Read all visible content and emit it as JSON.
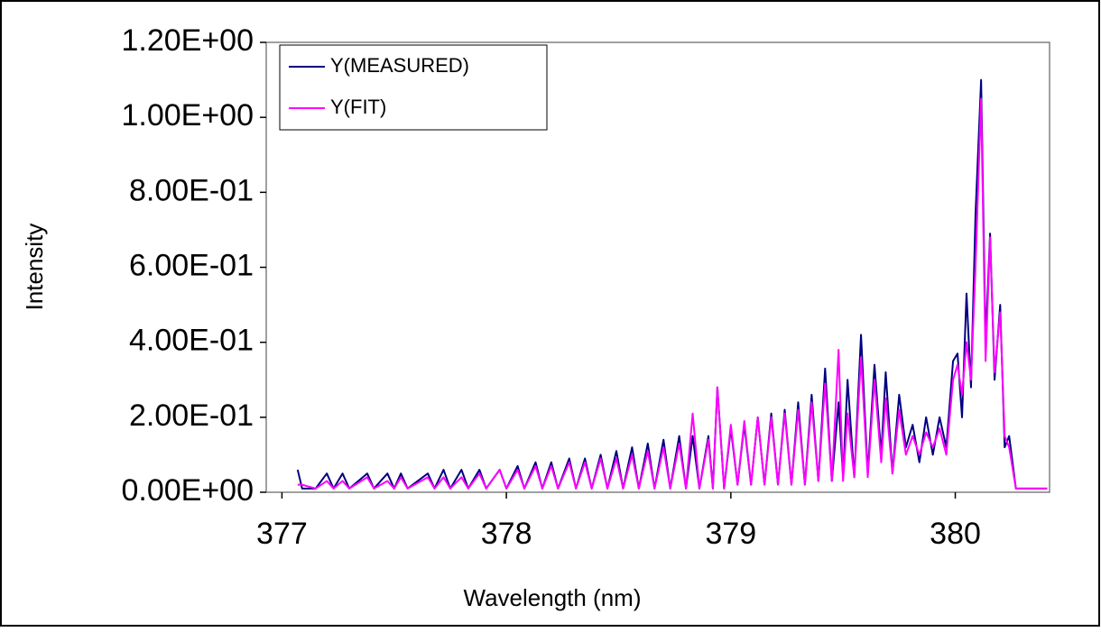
{
  "chart_data": {
    "type": "line",
    "x_label": "Wavelength (nm)",
    "y_label": "Intensity",
    "xlim": [
      376.93,
      380.42
    ],
    "xticks": [
      377,
      378,
      379,
      380
    ],
    "ylim": [
      0,
      1.2
    ],
    "yticks": [
      {
        "value": 0,
        "label": "0.00E+00"
      },
      {
        "value": 0.2,
        "label": "2.00E-01"
      },
      {
        "value": 0.4,
        "label": "4.00E-01"
      },
      {
        "value": 0.6,
        "label": "6.00E-01"
      },
      {
        "value": 0.8,
        "label": "8.00E-01"
      },
      {
        "value": 1.0,
        "label": "1.00E+00"
      },
      {
        "value": 1.2,
        "label": "1.20E+00"
      }
    ],
    "legend": "top-left",
    "x": [
      377.07,
      377.09,
      377.15,
      377.2,
      377.23,
      377.27,
      377.3,
      377.38,
      377.41,
      377.47,
      377.5,
      377.53,
      377.56,
      377.65,
      377.68,
      377.72,
      377.75,
      377.8,
      377.83,
      377.88,
      377.91,
      377.97,
      378.0,
      378.05,
      378.08,
      378.13,
      378.16,
      378.2,
      378.23,
      378.28,
      378.31,
      378.35,
      378.38,
      378.42,
      378.45,
      378.49,
      378.52,
      378.56,
      378.59,
      378.63,
      378.66,
      378.7,
      378.73,
      378.77,
      378.8,
      378.83,
      378.86,
      378.9,
      378.92,
      378.94,
      378.97,
      379.0,
      379.03,
      379.06,
      379.09,
      379.12,
      379.15,
      379.18,
      379.21,
      379.24,
      379.27,
      379.3,
      379.33,
      379.36,
      379.39,
      379.42,
      379.45,
      379.48,
      379.5,
      379.52,
      379.55,
      379.58,
      379.61,
      379.64,
      379.67,
      379.69,
      379.72,
      379.75,
      379.78,
      379.81,
      379.84,
      379.87,
      379.9,
      379.93,
      379.96,
      379.99,
      380.01,
      380.03,
      380.05,
      380.07,
      380.09,
      380.115,
      380.135,
      380.155,
      380.175,
      380.2,
      380.22,
      380.24,
      380.27,
      380.41
    ],
    "series": [
      {
        "name": "Y(MEASURED)",
        "color": "#000080",
        "values": [
          0.06,
          0.01,
          0.01,
          0.05,
          0.01,
          0.05,
          0.01,
          0.05,
          0.01,
          0.05,
          0.01,
          0.05,
          0.01,
          0.05,
          0.01,
          0.06,
          0.01,
          0.06,
          0.01,
          0.06,
          0.01,
          0.06,
          0.01,
          0.07,
          0.01,
          0.08,
          0.01,
          0.08,
          0.01,
          0.09,
          0.01,
          0.09,
          0.01,
          0.1,
          0.01,
          0.11,
          0.01,
          0.12,
          0.01,
          0.13,
          0.01,
          0.14,
          0.01,
          0.15,
          0.01,
          0.15,
          0.01,
          0.15,
          0.01,
          0.28,
          0.01,
          0.17,
          0.02,
          0.18,
          0.02,
          0.2,
          0.02,
          0.21,
          0.02,
          0.22,
          0.02,
          0.24,
          0.02,
          0.26,
          0.03,
          0.33,
          0.03,
          0.24,
          0.04,
          0.3,
          0.04,
          0.42,
          0.05,
          0.34,
          0.1,
          0.32,
          0.05,
          0.26,
          0.12,
          0.18,
          0.08,
          0.2,
          0.1,
          0.2,
          0.12,
          0.35,
          0.37,
          0.2,
          0.53,
          0.28,
          0.74,
          1.1,
          0.4,
          0.69,
          0.3,
          0.5,
          0.12,
          0.15,
          0.01,
          0.01
        ]
      },
      {
        "name": "Y(FIT)",
        "color": "#ff00ff",
        "values": [
          0.02,
          0.02,
          0.01,
          0.03,
          0.01,
          0.03,
          0.01,
          0.04,
          0.01,
          0.03,
          0.01,
          0.04,
          0.01,
          0.04,
          0.01,
          0.04,
          0.01,
          0.04,
          0.01,
          0.05,
          0.01,
          0.06,
          0.01,
          0.06,
          0.01,
          0.07,
          0.01,
          0.07,
          0.01,
          0.08,
          0.01,
          0.08,
          0.01,
          0.09,
          0.01,
          0.09,
          0.01,
          0.1,
          0.01,
          0.11,
          0.01,
          0.12,
          0.01,
          0.13,
          0.01,
          0.21,
          0.01,
          0.14,
          0.01,
          0.28,
          0.01,
          0.18,
          0.02,
          0.19,
          0.02,
          0.2,
          0.02,
          0.2,
          0.02,
          0.21,
          0.02,
          0.22,
          0.02,
          0.24,
          0.03,
          0.29,
          0.03,
          0.38,
          0.03,
          0.21,
          0.04,
          0.36,
          0.04,
          0.3,
          0.08,
          0.25,
          0.05,
          0.22,
          0.1,
          0.15,
          0.1,
          0.16,
          0.12,
          0.17,
          0.1,
          0.3,
          0.34,
          0.26,
          0.4,
          0.3,
          0.6,
          1.05,
          0.35,
          0.68,
          0.32,
          0.48,
          0.15,
          0.12,
          0.01,
          0.01
        ]
      }
    ]
  }
}
